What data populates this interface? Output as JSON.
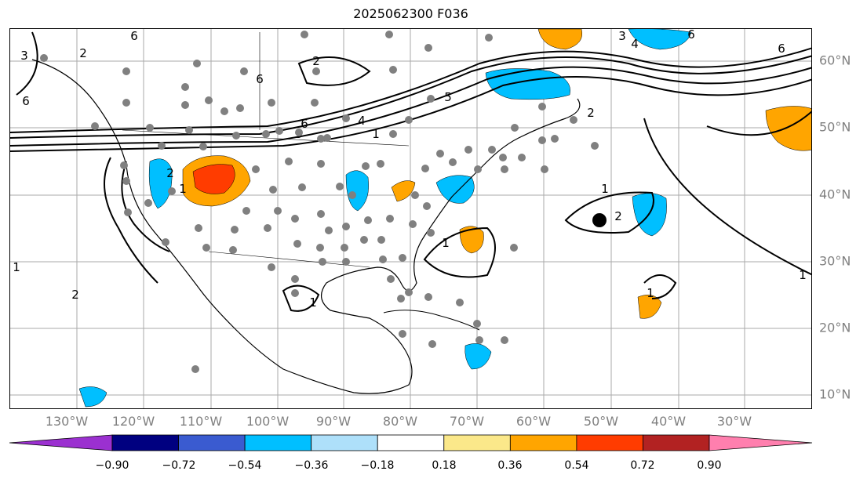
{
  "title": "2025062300 F036",
  "longitude_labels": [
    "130°W",
    "120°W",
    "110°W",
    "100°W",
    "90°W",
    "80°W",
    "70°W",
    "60°W",
    "50°W",
    "40°W",
    "30°W"
  ],
  "latitude_labels": [
    "60°N",
    "50°N",
    "40°N",
    "30°N",
    "20°N",
    "10°N"
  ],
  "contour_labels": [
    "6",
    "3",
    "2",
    "6",
    "2",
    "6",
    "5",
    "6",
    "4",
    "1",
    "2",
    "1",
    "1",
    "2",
    "1",
    "1",
    "1",
    "2",
    "1",
    "6",
    "3",
    "4",
    "6",
    "1",
    "5",
    "2"
  ],
  "colorbar": {
    "ticks": [
      "−0.90",
      "−0.72",
      "−0.54",
      "−0.36",
      "−0.18",
      "0.18",
      "0.36",
      "0.54",
      "0.72",
      "0.90"
    ],
    "colors": [
      "#9b30d0",
      "#000080",
      "#3a5bd0",
      "#00bfff",
      "#aee0fa",
      "#ffffff",
      "#fbe88a",
      "#ffa500",
      "#ff3c00",
      "#b22222",
      "#ff7fae"
    ]
  }
}
